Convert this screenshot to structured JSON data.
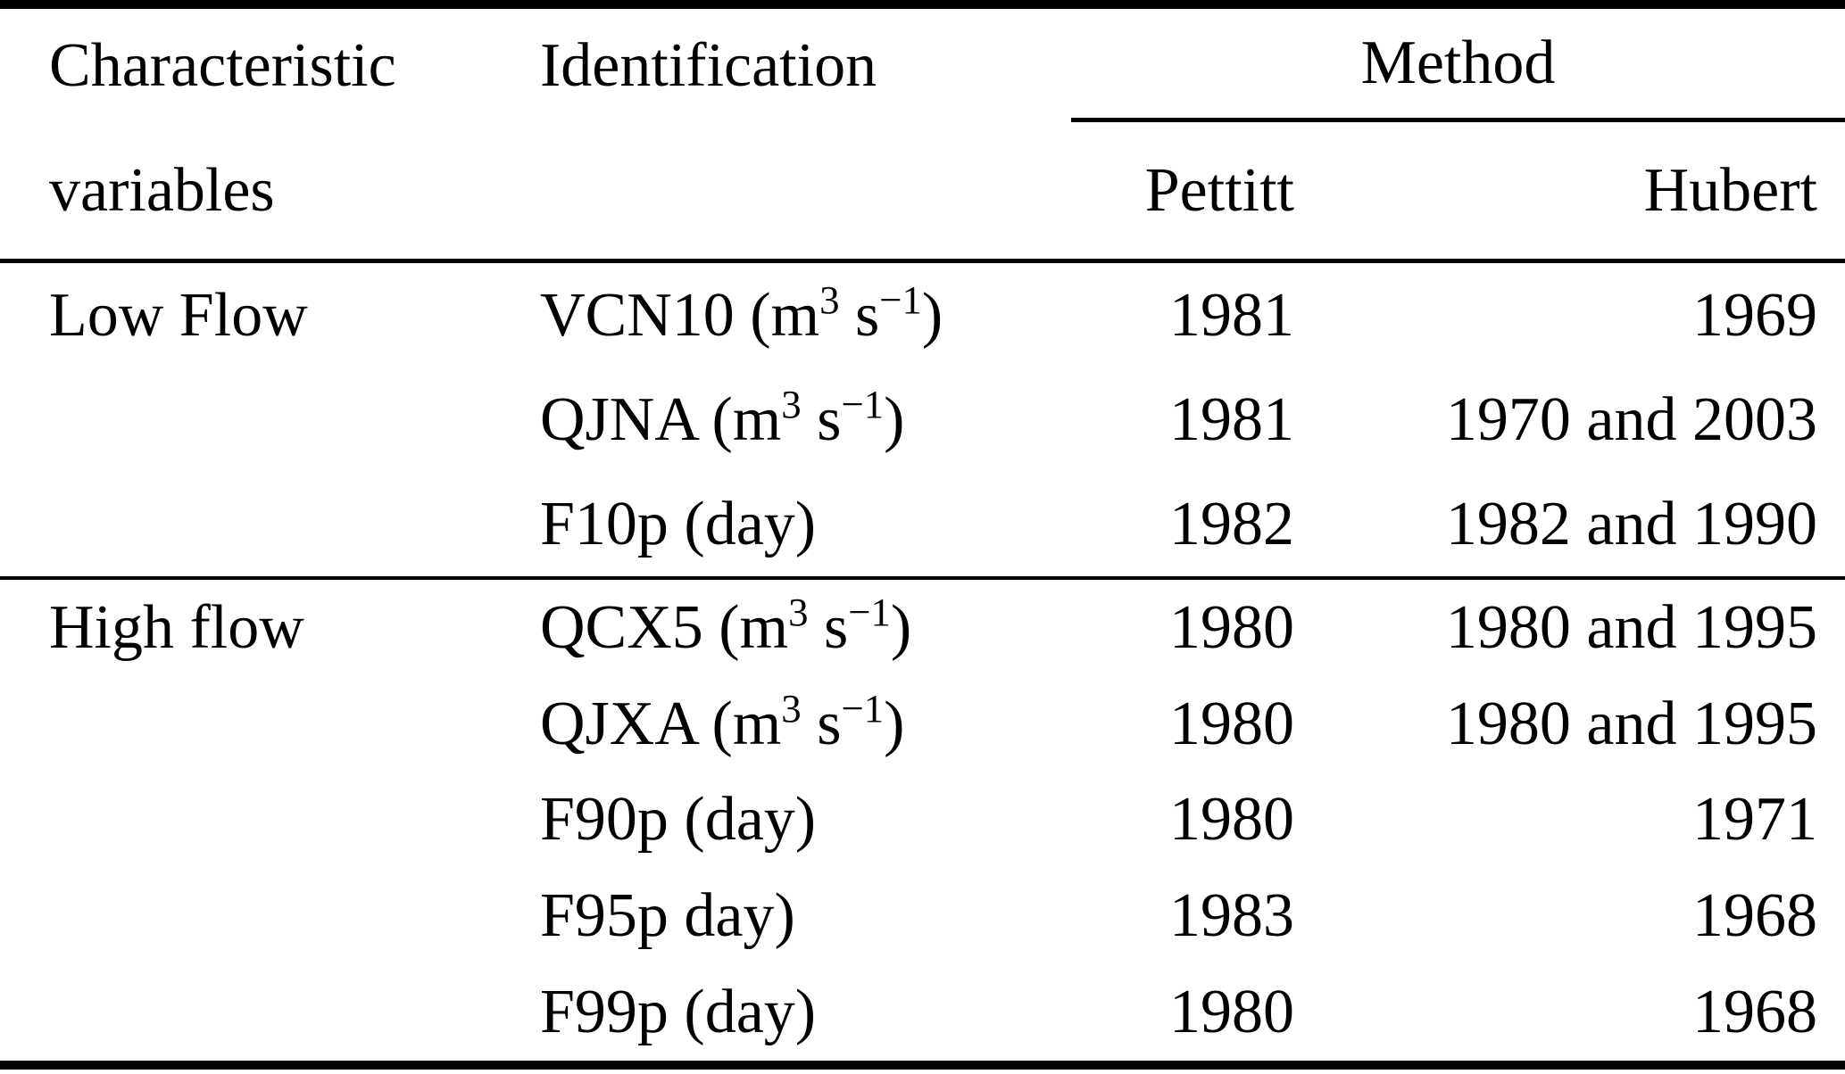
{
  "table": {
    "colors": {
      "text": "#000000",
      "background": "#ffffff",
      "rule": "#000000"
    },
    "header": {
      "col1_line1": "Characteristic",
      "col1_line2": "variables",
      "col2": "Identification",
      "method_group": "Method",
      "method_sub_left": "Pettitt",
      "method_sub_right": "Hubert"
    },
    "sections": [
      {
        "label": "Low Flow",
        "rows": [
          {
            "identification": "VCN10 (m^{3} s^{−1})",
            "pettitt": "1981",
            "hubert": "1969"
          },
          {
            "identification": "QJNA (m^{3} s^{−1})",
            "pettitt": "1981",
            "hubert": "1970 and 2003"
          },
          {
            "identification": "F10p (day)",
            "pettitt": "1982",
            "hubert": "1982 and 1990"
          }
        ]
      },
      {
        "label": "High flow",
        "rows": [
          {
            "identification": "QCX5 (m^{3} s^{−1})",
            "pettitt": "1980",
            "hubert": "1980 and 1995"
          },
          {
            "identification": "QJXA (m^{3} s^{−1})",
            "pettitt": "1980",
            "hubert": "1980 and 1995"
          },
          {
            "identification": "F90p (day)",
            "pettitt": "1980",
            "hubert": "1971"
          },
          {
            "identification": "F95p day)",
            "pettitt": "1983",
            "hubert": "1968"
          },
          {
            "identification": "F99p (day)",
            "pettitt": "1980",
            "hubert": "1968"
          }
        ]
      }
    ]
  }
}
